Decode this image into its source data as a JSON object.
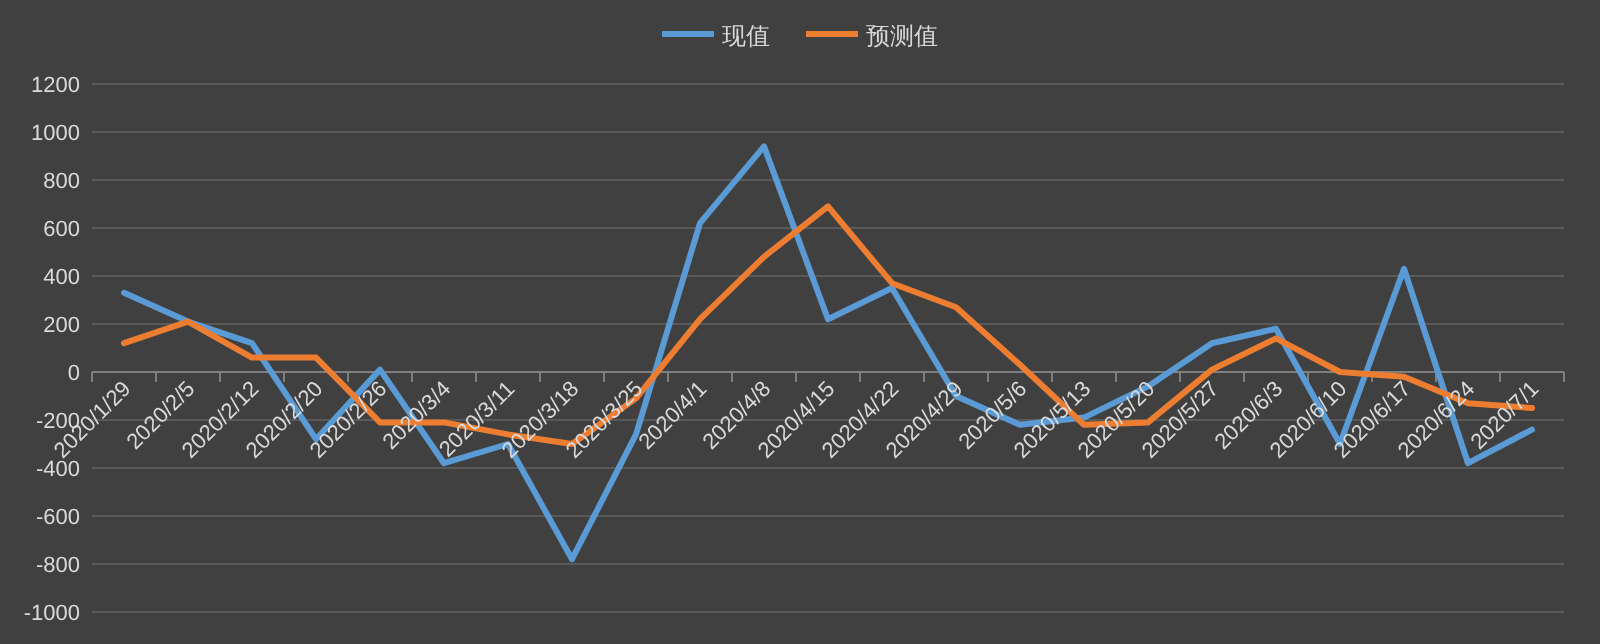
{
  "chart_data": {
    "type": "line",
    "categories": [
      "2020/1/29",
      "2020/2/5",
      "2020/2/12",
      "2020/2/20",
      "2020/2/26",
      "2020/3/4",
      "2020/3/11",
      "2020/3/18",
      "2020/3/25",
      "2020/4/1",
      "2020/4/8",
      "2020/4/15",
      "2020/4/22",
      "2020/4/29",
      "2020/5/6",
      "2020/5/13",
      "2020/5/20",
      "2020/5/27",
      "2020/6/3",
      "2020/6/10",
      "2020/6/17",
      "2020/6/24",
      "2020/7/1"
    ],
    "series": [
      {
        "name": "现值",
        "color": "#5b9bd5",
        "values": [
          330,
          210,
          120,
          -280,
          10,
          -380,
          -300,
          -780,
          -260,
          620,
          940,
          220,
          350,
          -100,
          -220,
          -190,
          -60,
          120,
          180,
          -300,
          430,
          -380,
          -240
        ]
      },
      {
        "name": "预测值",
        "color": "#ed7d31",
        "values": [
          120,
          210,
          60,
          60,
          -210,
          -210,
          -260,
          -300,
          -110,
          220,
          480,
          690,
          370,
          270,
          30,
          -220,
          -210,
          10,
          140,
          0,
          -20,
          -130,
          -150
        ]
      }
    ],
    "ylim": [
      -1000,
      1200
    ],
    "yticks": [
      -1000,
      -800,
      -600,
      -400,
      -200,
      0,
      200,
      400,
      600,
      800,
      1000,
      1200
    ],
    "grid": "y",
    "legend": "top",
    "marker": "none",
    "line_style": "solid"
  }
}
